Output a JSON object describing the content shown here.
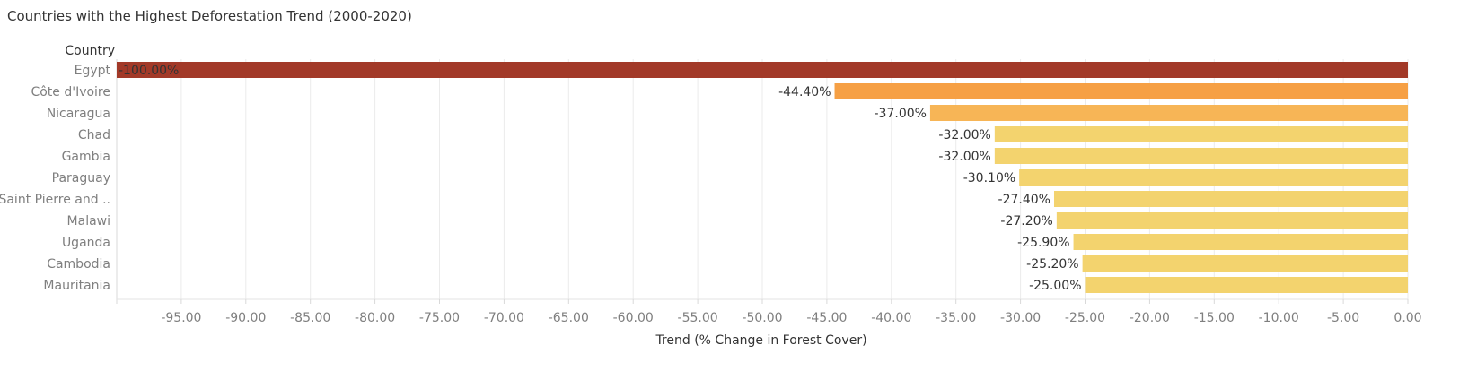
{
  "chart_data": {
    "type": "bar",
    "orientation": "horizontal",
    "title": "Countries with  the Highest Deforestation Trend (2000-2020)",
    "row_header": "Country",
    "xlabel": "Trend (% Change in Forest Cover)",
    "categories": [
      "Egypt",
      "Côte d'Ivoire",
      "Nicaragua",
      "Chad",
      "Gambia",
      "Paraguay",
      "Saint Pierre and ..",
      "Malawi",
      "Uganda",
      "Cambodia",
      "Mauritania"
    ],
    "values": [
      -100.0,
      -44.4,
      -37.0,
      -32.0,
      -32.0,
      -30.1,
      -27.4,
      -27.2,
      -25.9,
      -25.2,
      -25.0
    ],
    "data_labels": [
      "-100.00%",
      "-44.40%",
      "-37.00%",
      "-32.00%",
      "-32.00%",
      "-30.10%",
      "-27.40%",
      "-27.20%",
      "-25.90%",
      "-25.20%",
      "-25.00%"
    ],
    "xlim": [
      -100,
      0
    ],
    "x_ticks": [
      -95,
      -90,
      -85,
      -80,
      -75,
      -70,
      -65,
      -60,
      -55,
      -50,
      -45,
      -40,
      -35,
      -30,
      -25,
      -20,
      -15,
      -10,
      -5,
      0
    ],
    "x_tick_labels": [
      "-95.00",
      "-90.00",
      "-85.00",
      "-80.00",
      "-75.00",
      "-70.00",
      "-65.00",
      "-60.00",
      "-55.00",
      "-50.00",
      "-45.00",
      "-40.00",
      "-35.00",
      "-30.00",
      "-25.00",
      "-20.00",
      "-15.00",
      "-10.00",
      "-5.00",
      "0.00"
    ],
    "grid": true,
    "colors": {
      "darkest": "#a23928",
      "orange": "#f6a045",
      "light_orange": "#f7b556",
      "yellow": "#f3d36e",
      "gridline": "#ebebeb"
    },
    "bar_colors": [
      "#a23928",
      "#f6a045",
      "#f7b556",
      "#f3d36e",
      "#f3d36e",
      "#f3d36e",
      "#f3d36e",
      "#f3d36e",
      "#f3d36e",
      "#f3d36e",
      "#f3d36e"
    ]
  }
}
